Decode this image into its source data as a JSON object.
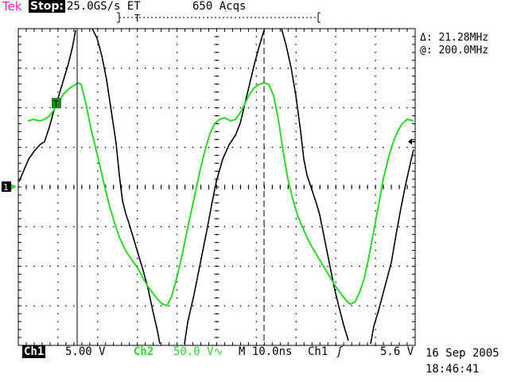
{
  "status_bar": {
    "brand": "Tek",
    "run_state": "Stop:",
    "sample_rate": "25.0GS/s ET",
    "acquisitions": "650 Acqs",
    "trigger_position_marker": "T"
  },
  "measurements": {
    "delta": "Δ: 21.28MHz",
    "at": "@: 200.0MHz"
  },
  "channel_markers": {
    "ch1": "1",
    "trigger": "T"
  },
  "bottom_bar": {
    "ch1_label": "Ch1",
    "ch1_scale": "5.00 V",
    "ch2_label": "Ch2",
    "ch2_scale": "50.0 V",
    "ch2_coupling_icon": "ac-coupling-icon",
    "timebase": "M 10.0ns",
    "trigger_source": "Ch1",
    "trigger_edge_icon": "rising-edge-icon",
    "trigger_level": "5.6 V"
  },
  "timestamp": {
    "date": "16 Sep 2005",
    "time": "18:46:41"
  },
  "colors": {
    "brand": "#ff1fb0",
    "ch1": "#000000",
    "ch2": "#2bd82b"
  },
  "icons": [
    "ch1-ground-marker-icon",
    "trigger-level-arrow-icon",
    "cursor-icon"
  ]
}
